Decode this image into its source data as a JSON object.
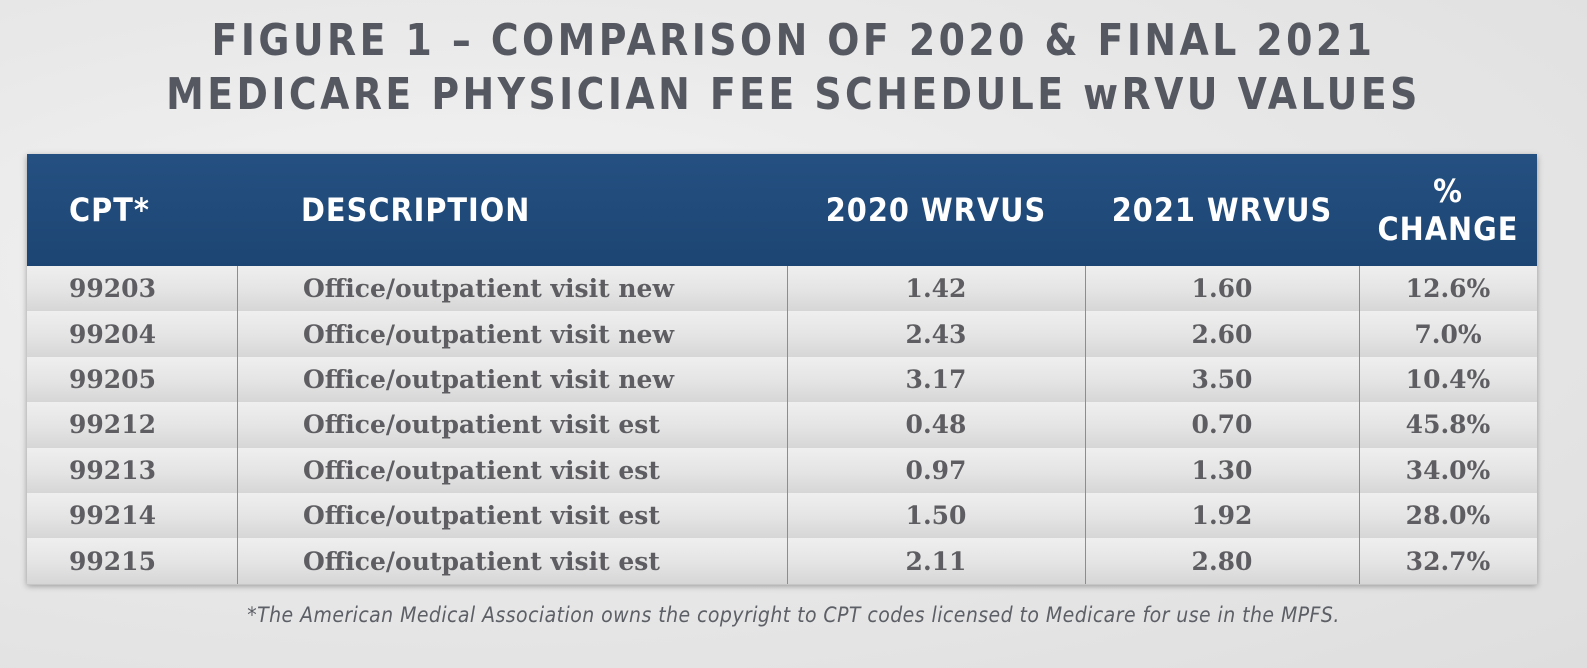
{
  "title": {
    "line1": "FIGURE 1 – COMPARISON OF 2020 & FINAL 2021",
    "line2": "MEDICARE PHYSICIAN FEE SCHEDULE wRVU VALUES"
  },
  "table": {
    "headers": {
      "cpt": "CPT*",
      "description": "DESCRIPTION",
      "wrvu_2020": "2020 WRVUS",
      "wrvu_2021": "2021 WRVUS",
      "pct_line1": "%",
      "pct_line2": "CHANGE"
    },
    "rows": [
      {
        "cpt": "99203",
        "description": "Office/outpatient visit new",
        "wrvu_2020": "1.42",
        "wrvu_2021": "1.60",
        "change": "12.6%"
      },
      {
        "cpt": "99204",
        "description": "Office/outpatient visit new",
        "wrvu_2020": "2.43",
        "wrvu_2021": "2.60",
        "change": "7.0%"
      },
      {
        "cpt": "99205",
        "description": "Office/outpatient visit new",
        "wrvu_2020": "3.17",
        "wrvu_2021": "3.50",
        "change": "10.4%"
      },
      {
        "cpt": "99212",
        "description": "Office/outpatient visit est",
        "wrvu_2020": "0.48",
        "wrvu_2021": "0.70",
        "change": "45.8%"
      },
      {
        "cpt": "99213",
        "description": "Office/outpatient visit est",
        "wrvu_2020": "0.97",
        "wrvu_2021": "1.30",
        "change": "34.0%"
      },
      {
        "cpt": "99214",
        "description": "Office/outpatient visit est",
        "wrvu_2020": "1.50",
        "wrvu_2021": "1.92",
        "change": "28.0%"
      },
      {
        "cpt": "99215",
        "description": "Office/outpatient visit est",
        "wrvu_2020": "2.11",
        "wrvu_2021": "2.80",
        "change": "32.7%"
      }
    ]
  },
  "footnote": "*The American Medical Association owns the copyright to CPT codes licensed to Medicare for use in the MPFS.",
  "colors": {
    "header_bg": "#1f4a79",
    "title_text": "#555860",
    "cell_text": "#5e5e62"
  }
}
